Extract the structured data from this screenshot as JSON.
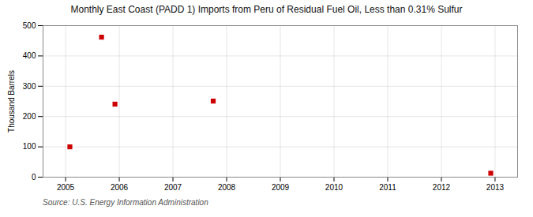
{
  "chart_data": {
    "type": "scatter",
    "title": "Monthly East Coast (PADD 1) Imports from Peru of Residual Fuel Oil, Less than 0.31% Sulfur",
    "ylabel": "Thousand Barrels",
    "annotation": "Source: U.S. Energy Information Administration",
    "x": [
      2005.08,
      2005.67,
      2005.92,
      2007.75,
      2012.92
    ],
    "values": [
      100,
      462,
      241,
      251,
      13
    ],
    "color": "#cc0000",
    "marker": "square",
    "xlim": [
      2004.58,
      2013.42
    ],
    "ylim": [
      0,
      500
    ],
    "xticks": [
      2005,
      2006,
      2007,
      2008,
      2009,
      2010,
      2011,
      2012,
      2013
    ],
    "yticks": [
      0,
      100,
      200,
      300,
      400,
      500
    ],
    "grid": true
  }
}
